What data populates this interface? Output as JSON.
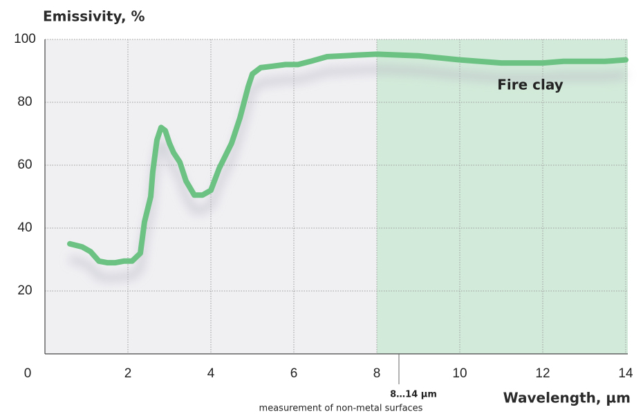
{
  "chart_data": {
    "type": "line",
    "y_label": "Emissivity, %",
    "x_label": "Wavelength, µm",
    "series": [
      {
        "name": "Fire clay",
        "color": "#6cc283",
        "x": [
          0.6,
          0.9,
          1.1,
          1.3,
          1.5,
          1.7,
          1.9,
          2.1,
          2.3,
          2.4,
          2.55,
          2.6,
          2.7,
          2.8,
          2.9,
          3.0,
          3.1,
          3.25,
          3.4,
          3.6,
          3.8,
          4.0,
          4.2,
          4.5,
          4.7,
          4.9,
          5.0,
          5.2,
          5.5,
          5.8,
          6.1,
          6.4,
          6.8,
          7.5,
          8,
          9,
          10,
          11,
          12,
          12.5,
          13.5,
          14
        ],
        "values": [
          35,
          34,
          32.5,
          29.5,
          29,
          29,
          29.5,
          29.5,
          32,
          42,
          50,
          58,
          68,
          72,
          71,
          67,
          64,
          61,
          55,
          50.5,
          50.5,
          52,
          59,
          67,
          75,
          85,
          89,
          91,
          91.5,
          92,
          92,
          93,
          94.5,
          95,
          95.3,
          94.8,
          93.5,
          92.5,
          92.5,
          93,
          93,
          93.5
        ]
      }
    ],
    "band": {
      "range": [
        8,
        14
      ],
      "color": "#d2ead9",
      "label": "8…14 µm",
      "note": "measurement of non-metal surfaces"
    },
    "xlim": [
      0,
      14
    ],
    "xticks": [
      0,
      2,
      4,
      6,
      8,
      10,
      12,
      14
    ],
    "ylim": [
      0,
      100
    ],
    "yticks": [
      20,
      40,
      60,
      80,
      100
    ],
    "grid": true
  }
}
